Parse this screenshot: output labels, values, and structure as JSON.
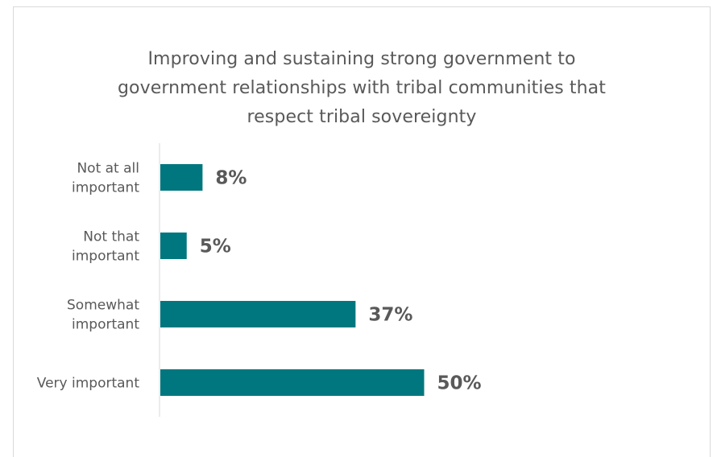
{
  "chart_data": {
    "type": "bar",
    "orientation": "horizontal",
    "title_lines": [
      "Improving and sustaining strong government to",
      "government relationships with tribal communities that",
      "respect tribal sovereignty"
    ],
    "categories": [
      [
        "Not at all",
        "important"
      ],
      [
        "Not that",
        "important"
      ],
      [
        "Somewhat",
        "important"
      ],
      [
        "Very important"
      ]
    ],
    "values": [
      8,
      5,
      37,
      50
    ],
    "value_labels": [
      "8%",
      "5%",
      "37%",
      "50%"
    ],
    "unit": "%",
    "xlim": [
      0,
      100
    ],
    "bar_color": "#00777E",
    "grid": false,
    "legend": "none"
  }
}
